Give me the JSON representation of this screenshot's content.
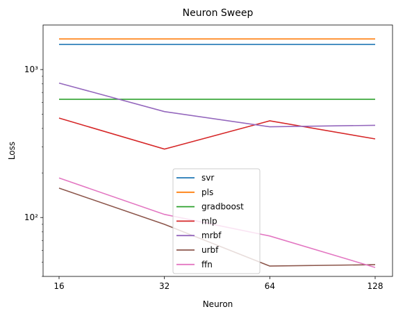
{
  "chart_data": {
    "type": "line",
    "title": "Neuron Sweep",
    "xlabel": "Neuron",
    "ylabel": "Loss",
    "x": [
      16,
      32,
      64,
      128
    ],
    "x_ticks": [
      "16",
      "32",
      "64",
      "128"
    ],
    "xscale": "log2",
    "yscale": "log",
    "ylim": [
      40,
      2000
    ],
    "y_major_ticks": [
      {
        "value": 100,
        "label": "10²"
      },
      {
        "value": 1000,
        "label": "10³"
      }
    ],
    "grid": false,
    "legend_position": "lower-center",
    "series": [
      {
        "name": "svr",
        "color": "#1f77b4",
        "values": [
          1480,
          1480,
          1480,
          1480
        ]
      },
      {
        "name": "pls",
        "color": "#ff7f0e",
        "values": [
          1610,
          1610,
          1610,
          1610
        ]
      },
      {
        "name": "gradboost",
        "color": "#2ca02c",
        "values": [
          630,
          630,
          630,
          630
        ]
      },
      {
        "name": "mlp",
        "color": "#d62728",
        "values": [
          470,
          290,
          450,
          340
        ]
      },
      {
        "name": "mrbf",
        "color": "#9467bd",
        "values": [
          810,
          520,
          410,
          420
        ]
      },
      {
        "name": "urbf",
        "color": "#8c564b",
        "values": [
          158,
          90,
          47,
          48
        ]
      },
      {
        "name": "ffn",
        "color": "#e377c2",
        "values": [
          185,
          105,
          75,
          46
        ]
      }
    ]
  }
}
